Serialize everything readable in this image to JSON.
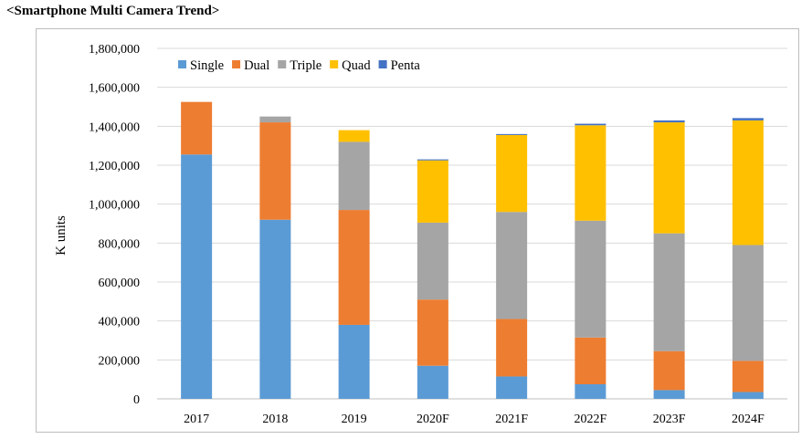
{
  "chart_data": {
    "type": "bar",
    "stacked": true,
    "title": "<Smartphone Multi Camera Trend>",
    "xlabel": "",
    "ylabel": "K units",
    "ylim": [
      0,
      1800000
    ],
    "yticks": [
      0,
      200000,
      400000,
      600000,
      800000,
      1000000,
      1200000,
      1400000,
      1600000,
      1800000
    ],
    "ytick_labels": [
      "0",
      "200,000",
      "400,000",
      "600,000",
      "800,000",
      "1,000,000",
      "1,200,000",
      "1,400,000",
      "1,600,000",
      "1,800,000"
    ],
    "grid": true,
    "legend_position": "top-left",
    "categories": [
      "2017",
      "2018",
      "2019",
      "2020F",
      "2021F",
      "2022F",
      "2023F",
      "2024F"
    ],
    "series": [
      {
        "name": "Single",
        "color": "#5b9bd5",
        "values": [
          1255000,
          920000,
          380000,
          170000,
          115000,
          75000,
          45000,
          35000
        ]
      },
      {
        "name": "Dual",
        "color": "#ed7d31",
        "values": [
          270000,
          500000,
          590000,
          340000,
          295000,
          240000,
          200000,
          160000
        ]
      },
      {
        "name": "Triple",
        "color": "#a5a5a5",
        "values": [
          0,
          30000,
          350000,
          395000,
          550000,
          600000,
          605000,
          595000
        ]
      },
      {
        "name": "Quad",
        "color": "#ffc000",
        "values": [
          0,
          0,
          60000,
          320000,
          395000,
          490000,
          570000,
          640000
        ]
      },
      {
        "name": "Penta",
        "color": "#4472c4",
        "values": [
          0,
          0,
          0,
          5000,
          5000,
          8000,
          10000,
          12000
        ]
      }
    ]
  }
}
